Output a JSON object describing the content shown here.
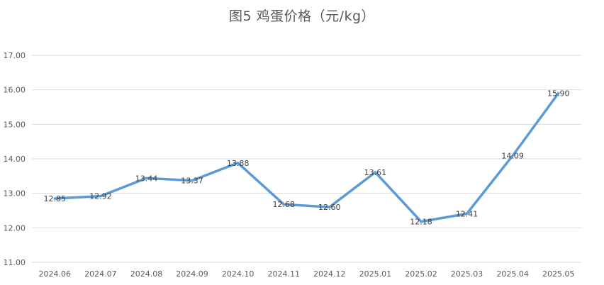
{
  "chart_data": {
    "type": "line",
    "title": "图5  鸡蛋价格（元/kg）",
    "categories": [
      "2024.06",
      "2024.07",
      "2024.08",
      "2024.09",
      "2024.10",
      "2024.11",
      "2024.12",
      "2025.01",
      "2025.02",
      "2025.03",
      "2025.04",
      "2025.05"
    ],
    "series": [
      {
        "values": [
          12.85,
          12.92,
          13.44,
          13.37,
          13.88,
          12.68,
          12.6,
          13.61,
          12.18,
          12.41,
          14.09,
          15.9
        ],
        "labels": [
          "12.85",
          "12.92",
          "13.44",
          "13.37",
          "13.88",
          "12.68",
          "12.60",
          "13.61",
          "12.18",
          "12.41",
          "14.09",
          "15.90"
        ]
      }
    ],
    "yticks": [
      "11.00",
      "12.00",
      "13.00",
      "14.00",
      "15.00",
      "16.00",
      "17.00"
    ],
    "ylim": [
      11,
      17
    ],
    "grid": true,
    "colors": {
      "line": "#5b9bd5",
      "grid": "#d9d9d9",
      "text": "#595959",
      "label": "#404040"
    }
  }
}
